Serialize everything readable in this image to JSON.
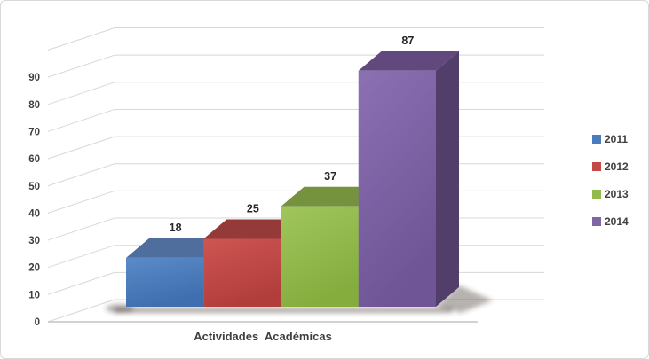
{
  "chart_data": {
    "type": "bar",
    "style": "3d-clustered-column",
    "title": "",
    "xlabel": "Actividades  Académicas",
    "ylabel": "",
    "categories": [
      "Actividades  Académicas"
    ],
    "series": [
      {
        "name": "2011",
        "value": 18,
        "color": "#4a7cbd",
        "color_light": "#5b8ac9",
        "color_dark": "#3f6fae",
        "top_color": "#4f6d9d",
        "side_color": "#3c5a85"
      },
      {
        "name": "2012",
        "value": 25,
        "color": "#c24946",
        "color_light": "#cd5552",
        "color_dark": "#b23e3c",
        "top_color": "#943b39",
        "side_color": "#7e302e"
      },
      {
        "name": "2013",
        "value": 37,
        "color": "#93bb4c",
        "color_light": "#a0c65c",
        "color_dark": "#84ad3e",
        "top_color": "#75933e",
        "side_color": "#627c31"
      },
      {
        "name": "2014",
        "value": 87,
        "color": "#7f64a6",
        "color_light": "#8b71b3",
        "color_dark": "#6f5596",
        "top_color": "#61497e",
        "side_color": "#513e6b"
      }
    ],
    "y_axis": {
      "min": 0,
      "max": 100,
      "step": 10,
      "tick_labels": [
        "0",
        "10",
        "20",
        "30",
        "40",
        "50",
        "60",
        "70",
        "80",
        "90"
      ]
    },
    "data_labels": [
      "18",
      "25",
      "37",
      "87"
    ],
    "legend_position": "right",
    "grid": true
  },
  "colors": {
    "grid": "#d8d8d8",
    "baseline": "#c4c4c4",
    "tick_text": "#404040",
    "data_label_text": "#262626",
    "canvas_border": "#d9d9d9",
    "background": "#ffffff"
  }
}
